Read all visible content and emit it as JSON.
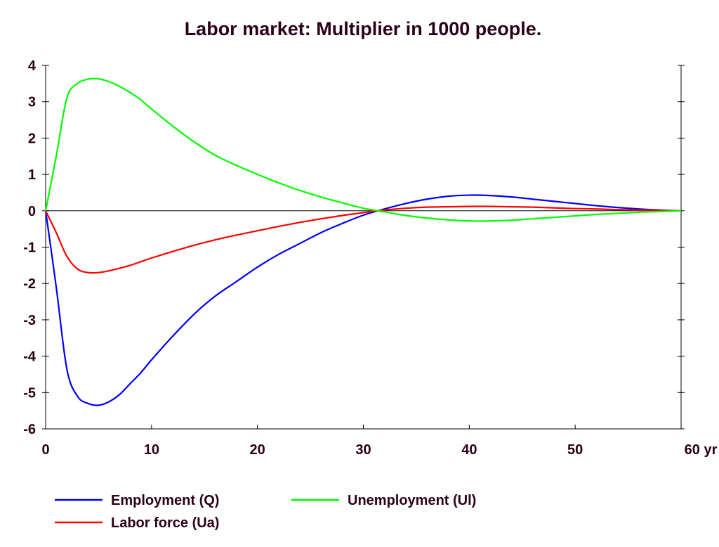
{
  "chart_data": {
    "type": "line",
    "title": "Labor market: Multiplier in 1000 people.",
    "xlabel": "",
    "ylabel": "",
    "xlim": [
      0,
      60
    ],
    "ylim": [
      -6,
      4
    ],
    "x_ticks": [
      "0",
      "10",
      "20",
      "30",
      "40",
      "50",
      "60 yr"
    ],
    "x_tick_values": [
      0,
      10,
      20,
      30,
      40,
      50,
      60
    ],
    "y_ticks": [
      "4",
      "3",
      "2",
      "1",
      "0",
      "-1",
      "-2",
      "-3",
      "-4",
      "-5",
      "-6"
    ],
    "y_tick_values": [
      4,
      3,
      2,
      1,
      0,
      -1,
      -2,
      -3,
      -4,
      -5,
      -6
    ],
    "grid": false,
    "zero_line": true,
    "legend_position": "bottom",
    "series": [
      {
        "name": "Employment (Q)",
        "color": "#0000ff",
        "x": [
          0,
          1,
          2,
          3,
          4,
          5,
          6,
          7,
          8,
          9,
          10,
          12,
          14,
          16,
          18,
          20,
          22,
          24,
          26,
          28,
          30,
          32,
          34,
          36,
          38,
          40,
          42,
          44,
          46,
          48,
          50,
          52,
          54,
          56,
          58,
          60
        ],
        "y": [
          0,
          -2.1,
          -4.35,
          -5.1,
          -5.3,
          -5.35,
          -5.25,
          -5.05,
          -4.75,
          -4.45,
          -4.1,
          -3.45,
          -2.85,
          -2.35,
          -1.95,
          -1.55,
          -1.2,
          -0.9,
          -0.6,
          -0.35,
          -0.12,
          0.05,
          0.2,
          0.32,
          0.4,
          0.43,
          0.42,
          0.38,
          0.32,
          0.26,
          0.2,
          0.14,
          0.09,
          0.05,
          0.02,
          0.0
        ]
      },
      {
        "name": "Labor force (Ua)",
        "color": "#ff0000",
        "x": [
          0,
          1,
          2,
          3,
          4,
          5,
          6,
          7,
          8,
          9,
          10,
          12,
          14,
          16,
          18,
          20,
          22,
          24,
          26,
          28,
          30,
          32,
          34,
          36,
          38,
          40,
          42,
          44,
          46,
          48,
          50,
          52,
          54,
          56,
          58,
          60
        ],
        "y": [
          0,
          -0.6,
          -1.25,
          -1.6,
          -1.7,
          -1.7,
          -1.65,
          -1.58,
          -1.5,
          -1.4,
          -1.3,
          -1.12,
          -0.95,
          -0.8,
          -0.67,
          -0.55,
          -0.43,
          -0.32,
          -0.22,
          -0.13,
          -0.05,
          0.02,
          0.07,
          0.1,
          0.11,
          0.12,
          0.12,
          0.11,
          0.1,
          0.08,
          0.06,
          0.05,
          0.03,
          0.02,
          0.01,
          0.0
        ]
      },
      {
        "name": "Unemployment (Ul)",
        "color": "#00ff00",
        "x": [
          0,
          1,
          2,
          3,
          4,
          5,
          6,
          7,
          8,
          9,
          10,
          12,
          14,
          16,
          18,
          20,
          22,
          24,
          26,
          28,
          30,
          32,
          34,
          36,
          38,
          40,
          42,
          44,
          46,
          48,
          50,
          52,
          54,
          56,
          58,
          60
        ],
        "y": [
          0,
          1.5,
          3.1,
          3.5,
          3.62,
          3.63,
          3.55,
          3.42,
          3.25,
          3.05,
          2.8,
          2.33,
          1.9,
          1.53,
          1.25,
          1.0,
          0.77,
          0.56,
          0.38,
          0.22,
          0.07,
          -0.03,
          -0.13,
          -0.2,
          -0.25,
          -0.28,
          -0.28,
          -0.26,
          -0.22,
          -0.18,
          -0.14,
          -0.1,
          -0.07,
          -0.04,
          -0.02,
          0.0
        ]
      }
    ],
    "legend": [
      {
        "series": 0,
        "label": "Employment (Q)"
      },
      {
        "series": 2,
        "label": "Unemployment (Ul)"
      },
      {
        "series": 1,
        "label": "Labor force (Ua)"
      }
    ],
    "axis_color": "#000000",
    "text_color": "#2a0018"
  }
}
